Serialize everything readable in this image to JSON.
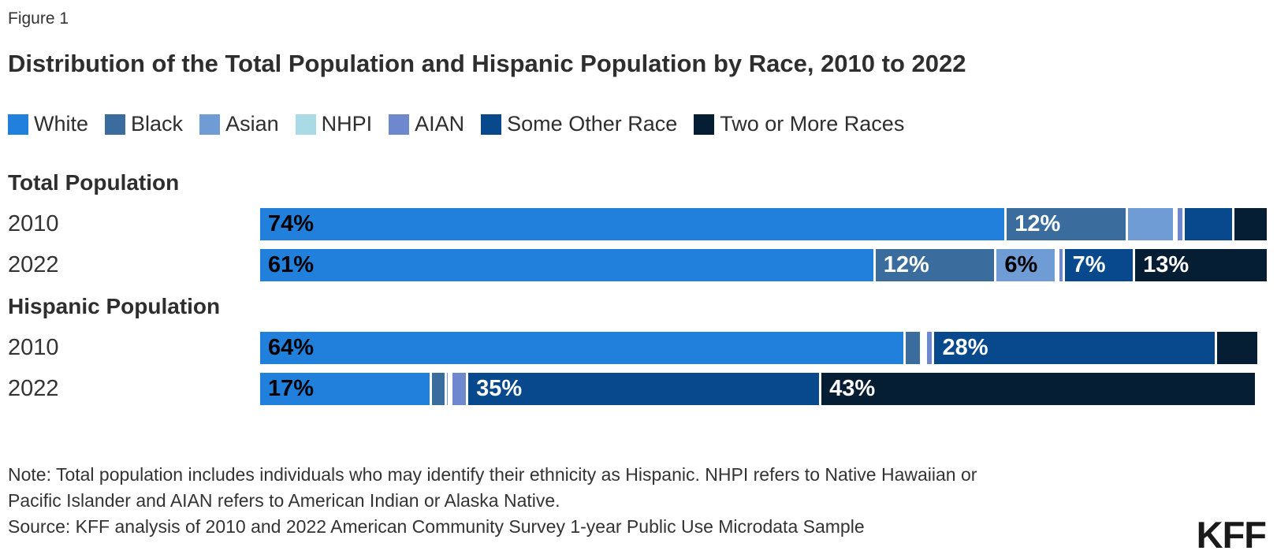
{
  "figure_label": "Figure 1",
  "title": "Distribution of the Total Population and Hispanic Population by Race, 2010 to 2022",
  "note_lines": [
    "Note: Total population includes individuals who may identify their ethnicity as Hispanic. NHPI refers to Native Hawaiian or",
    "Pacific Islander and AIAN refers to American Indian or Alaska Native."
  ],
  "source": "Source: KFF analysis of 2010 and 2022 American Community Survey 1-year Public Use Microdata Sample",
  "logo_text": "KFF",
  "colors": {
    "label_dark": "#000000",
    "label_light": "#ffffff",
    "text": "#333333"
  },
  "chart_data": {
    "type": "bar",
    "orientation": "horizontal-stacked",
    "unit": "percent",
    "xlim": [
      0,
      100
    ],
    "legend_position": "top",
    "races": [
      {
        "name": "White",
        "color": "#2080dc"
      },
      {
        "name": "Black",
        "color": "#3a6d9e"
      },
      {
        "name": "Asian",
        "color": "#6f9cd4"
      },
      {
        "name": "NHPI",
        "color": "#a8dbe6"
      },
      {
        "name": "AIAN",
        "color": "#6d88cd"
      },
      {
        "name": "Some Other Race",
        "color": "#07498c"
      },
      {
        "name": "Two or More Races",
        "color": "#051e33"
      }
    ],
    "groups": [
      {
        "heading": "Total Population",
        "rows": [
          {
            "year": "2010",
            "segments": [
              {
                "race": "White",
                "value": 74,
                "label": "74%",
                "label_color": "#000000"
              },
              {
                "race": "Black",
                "value": 12,
                "label": "12%",
                "label_color": "#ffffff"
              },
              {
                "race": "Asian",
                "value": 4.7,
                "label": "",
                "label_color": ""
              },
              {
                "race": "NHPI",
                "value": 0.2,
                "label": "",
                "label_color": ""
              },
              {
                "race": "AIAN",
                "value": 0.7,
                "label": "",
                "label_color": ""
              },
              {
                "race": "Some Other Race",
                "value": 4.9,
                "label": "",
                "label_color": ""
              },
              {
                "race": "Two or More Races",
                "value": 3.2,
                "label": "",
                "label_color": ""
              }
            ]
          },
          {
            "year": "2022",
            "segments": [
              {
                "race": "White",
                "value": 61,
                "label": "61%",
                "label_color": "#000000"
              },
              {
                "race": "Black",
                "value": 12,
                "label": "12%",
                "label_color": "#ffffff"
              },
              {
                "race": "Asian",
                "value": 6,
                "label": "6%",
                "label_color": "#000000"
              },
              {
                "race": "NHPI",
                "value": 0.2,
                "label": "",
                "label_color": ""
              },
              {
                "race": "AIAN",
                "value": 0.5,
                "label": "",
                "label_color": ""
              },
              {
                "race": "Some Other Race",
                "value": 7,
                "label": "7%",
                "label_color": "#ffffff"
              },
              {
                "race": "Two or More Races",
                "value": 13,
                "label": "13%",
                "label_color": "#ffffff"
              }
            ]
          }
        ]
      },
      {
        "heading": "Hispanic Population",
        "rows": [
          {
            "year": "2010",
            "segments": [
              {
                "race": "White",
                "value": 64,
                "label": "64%",
                "label_color": "#000000"
              },
              {
                "race": "Black",
                "value": 1.6,
                "label": "",
                "label_color": ""
              },
              {
                "race": "Asian",
                "value": 0.3,
                "label": "",
                "label_color": ""
              },
              {
                "race": "NHPI",
                "value": 0.1,
                "label": "",
                "label_color": ""
              },
              {
                "race": "AIAN",
                "value": 0.7,
                "label": "",
                "label_color": ""
              },
              {
                "race": "Some Other Race",
                "value": 28,
                "label": "28%",
                "label_color": "#ffffff"
              },
              {
                "race": "Two or More Races",
                "value": 4,
                "label": "",
                "label_color": ""
              }
            ]
          },
          {
            "year": "2022",
            "segments": [
              {
                "race": "White",
                "value": 17,
                "label": "17%",
                "label_color": "#000000"
              },
              {
                "race": "Black",
                "value": 1.5,
                "label": "",
                "label_color": ""
              },
              {
                "race": "Asian",
                "value": 0.3,
                "label": "",
                "label_color": ""
              },
              {
                "race": "NHPI",
                "value": 0.1,
                "label": "",
                "label_color": ""
              },
              {
                "race": "AIAN",
                "value": 1.6,
                "label": "",
                "label_color": ""
              },
              {
                "race": "Some Other Race",
                "value": 35,
                "label": "35%",
                "label_color": "#ffffff"
              },
              {
                "race": "Two or More Races",
                "value": 43,
                "label": "43%",
                "label_color": "#ffffff"
              }
            ]
          }
        ]
      }
    ]
  }
}
